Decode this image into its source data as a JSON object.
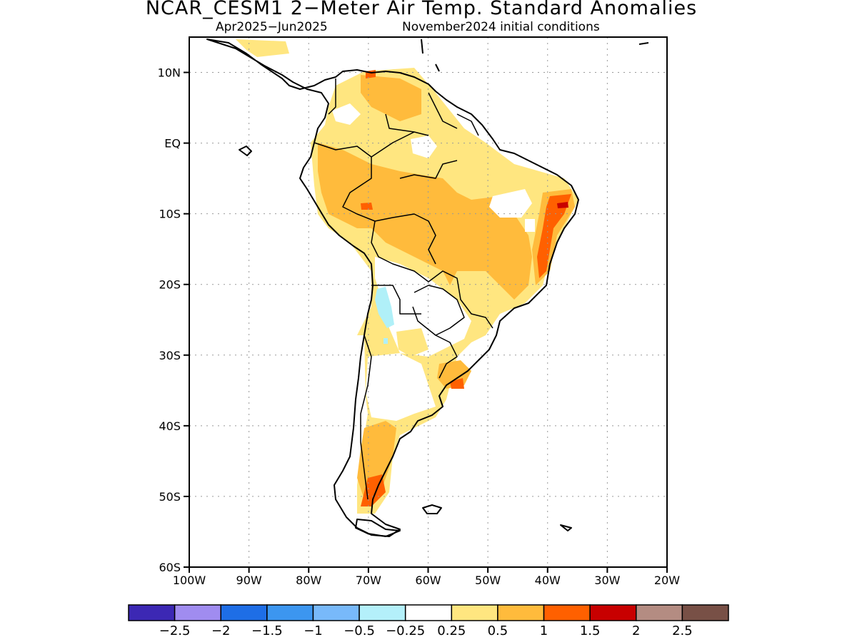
{
  "title": "NCAR_CESM1 2−Meter Air Temp. Standard Anomalies",
  "subtitle_period": "Apr2025−Jun2025",
  "subtitle_ic": "November2024 initial conditions",
  "map": {
    "lon_range": [
      -100,
      -20
    ],
    "lat_range": [
      -60,
      15
    ],
    "lat_ticks": [
      {
        "value": 10,
        "label": "10N"
      },
      {
        "value": 0,
        "label": "EQ"
      },
      {
        "value": -10,
        "label": "10S"
      },
      {
        "value": -20,
        "label": "20S"
      },
      {
        "value": -30,
        "label": "30S"
      },
      {
        "value": -40,
        "label": "40S"
      },
      {
        "value": -50,
        "label": "50S"
      },
      {
        "value": -60,
        "label": "60S"
      }
    ],
    "lon_ticks": [
      {
        "value": -100,
        "label": "100W"
      },
      {
        "value": -90,
        "label": "90W"
      },
      {
        "value": -80,
        "label": "80W"
      },
      {
        "value": -70,
        "label": "70W"
      },
      {
        "value": -60,
        "label": "60W"
      },
      {
        "value": -50,
        "label": "50W"
      },
      {
        "value": -40,
        "label": "40W"
      },
      {
        "value": -30,
        "label": "30W"
      },
      {
        "value": -20,
        "label": "20W"
      }
    ],
    "grid": "dotted",
    "colors": {
      "0.25-0.5": "#ffe680",
      "0.5-1": "#ffbb3c",
      "1-1.5": "#ff6000",
      "1.5-2": "#c80000",
      "-0.5--0.25": "#b0f0f8"
    }
  },
  "colorbar": {
    "colors": [
      "#3c28b4",
      "#a08cf0",
      "#1e6ee6",
      "#3c96f0",
      "#78b9fa",
      "#b4f0fa",
      "#ffffff",
      "#ffe680",
      "#ffbb3c",
      "#ff6000",
      "#c80000",
      "#b48c82",
      "#785046"
    ],
    "labels": [
      "−2.5",
      "−2",
      "−1.5",
      "−1",
      "−0.5",
      "−0.25",
      "0.25",
      "0.5",
      "1",
      "1.5",
      "2",
      "2.5"
    ]
  }
}
